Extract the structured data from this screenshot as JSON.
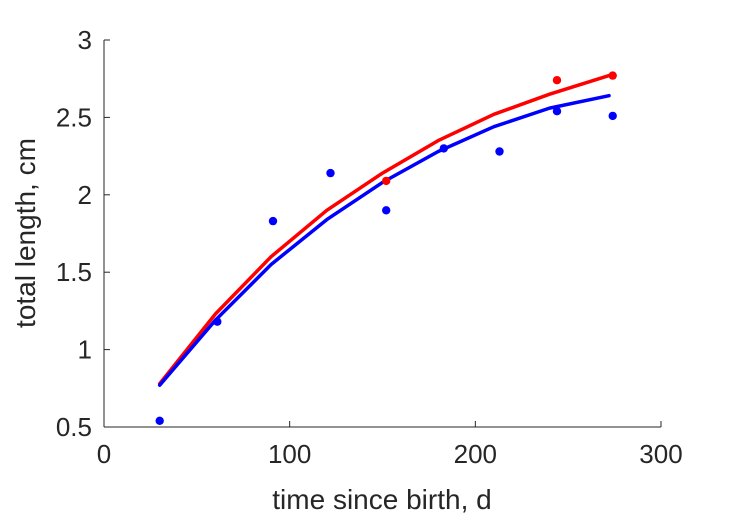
{
  "chart_data": {
    "type": "scatter",
    "title": "",
    "xlabel": "time since birth, d",
    "ylabel": "total length, cm",
    "xlim": [
      0,
      300
    ],
    "ylim": [
      0.5,
      3
    ],
    "xticks": [
      0,
      100,
      200,
      300
    ],
    "xtick_labels": [
      "0",
      "100",
      "200",
      "300"
    ],
    "yticks": [
      0.5,
      1,
      1.5,
      2,
      2.5,
      3
    ],
    "ytick_labels": [
      "0.5",
      "1",
      "1.5",
      "2",
      "2.5",
      "3"
    ],
    "grid": false,
    "legend": "none",
    "series": [
      {
        "color": "#ff0000",
        "marker_points": {
          "x": [
            152,
            244,
            274
          ],
          "y": [
            2.09,
            2.74,
            2.77
          ]
        },
        "curve": {
          "x": [
            30,
            60,
            90,
            120,
            150,
            180,
            210,
            240,
            272
          ],
          "y": [
            0.78,
            1.23,
            1.6,
            1.9,
            2.14,
            2.35,
            2.52,
            2.65,
            2.77
          ]
        }
      },
      {
        "color": "#0000ff",
        "marker_points": {
          "x": [
            30,
            61,
            91,
            122,
            152,
            183,
            213,
            244,
            274
          ],
          "y": [
            0.54,
            1.18,
            1.83,
            2.14,
            1.9,
            2.3,
            2.28,
            2.54,
            2.51
          ]
        },
        "curve": {
          "x": [
            30,
            60,
            90,
            120,
            150,
            180,
            210,
            240,
            272
          ],
          "y": [
            0.77,
            1.19,
            1.55,
            1.84,
            2.08,
            2.28,
            2.44,
            2.56,
            2.64
          ]
        }
      }
    ]
  }
}
